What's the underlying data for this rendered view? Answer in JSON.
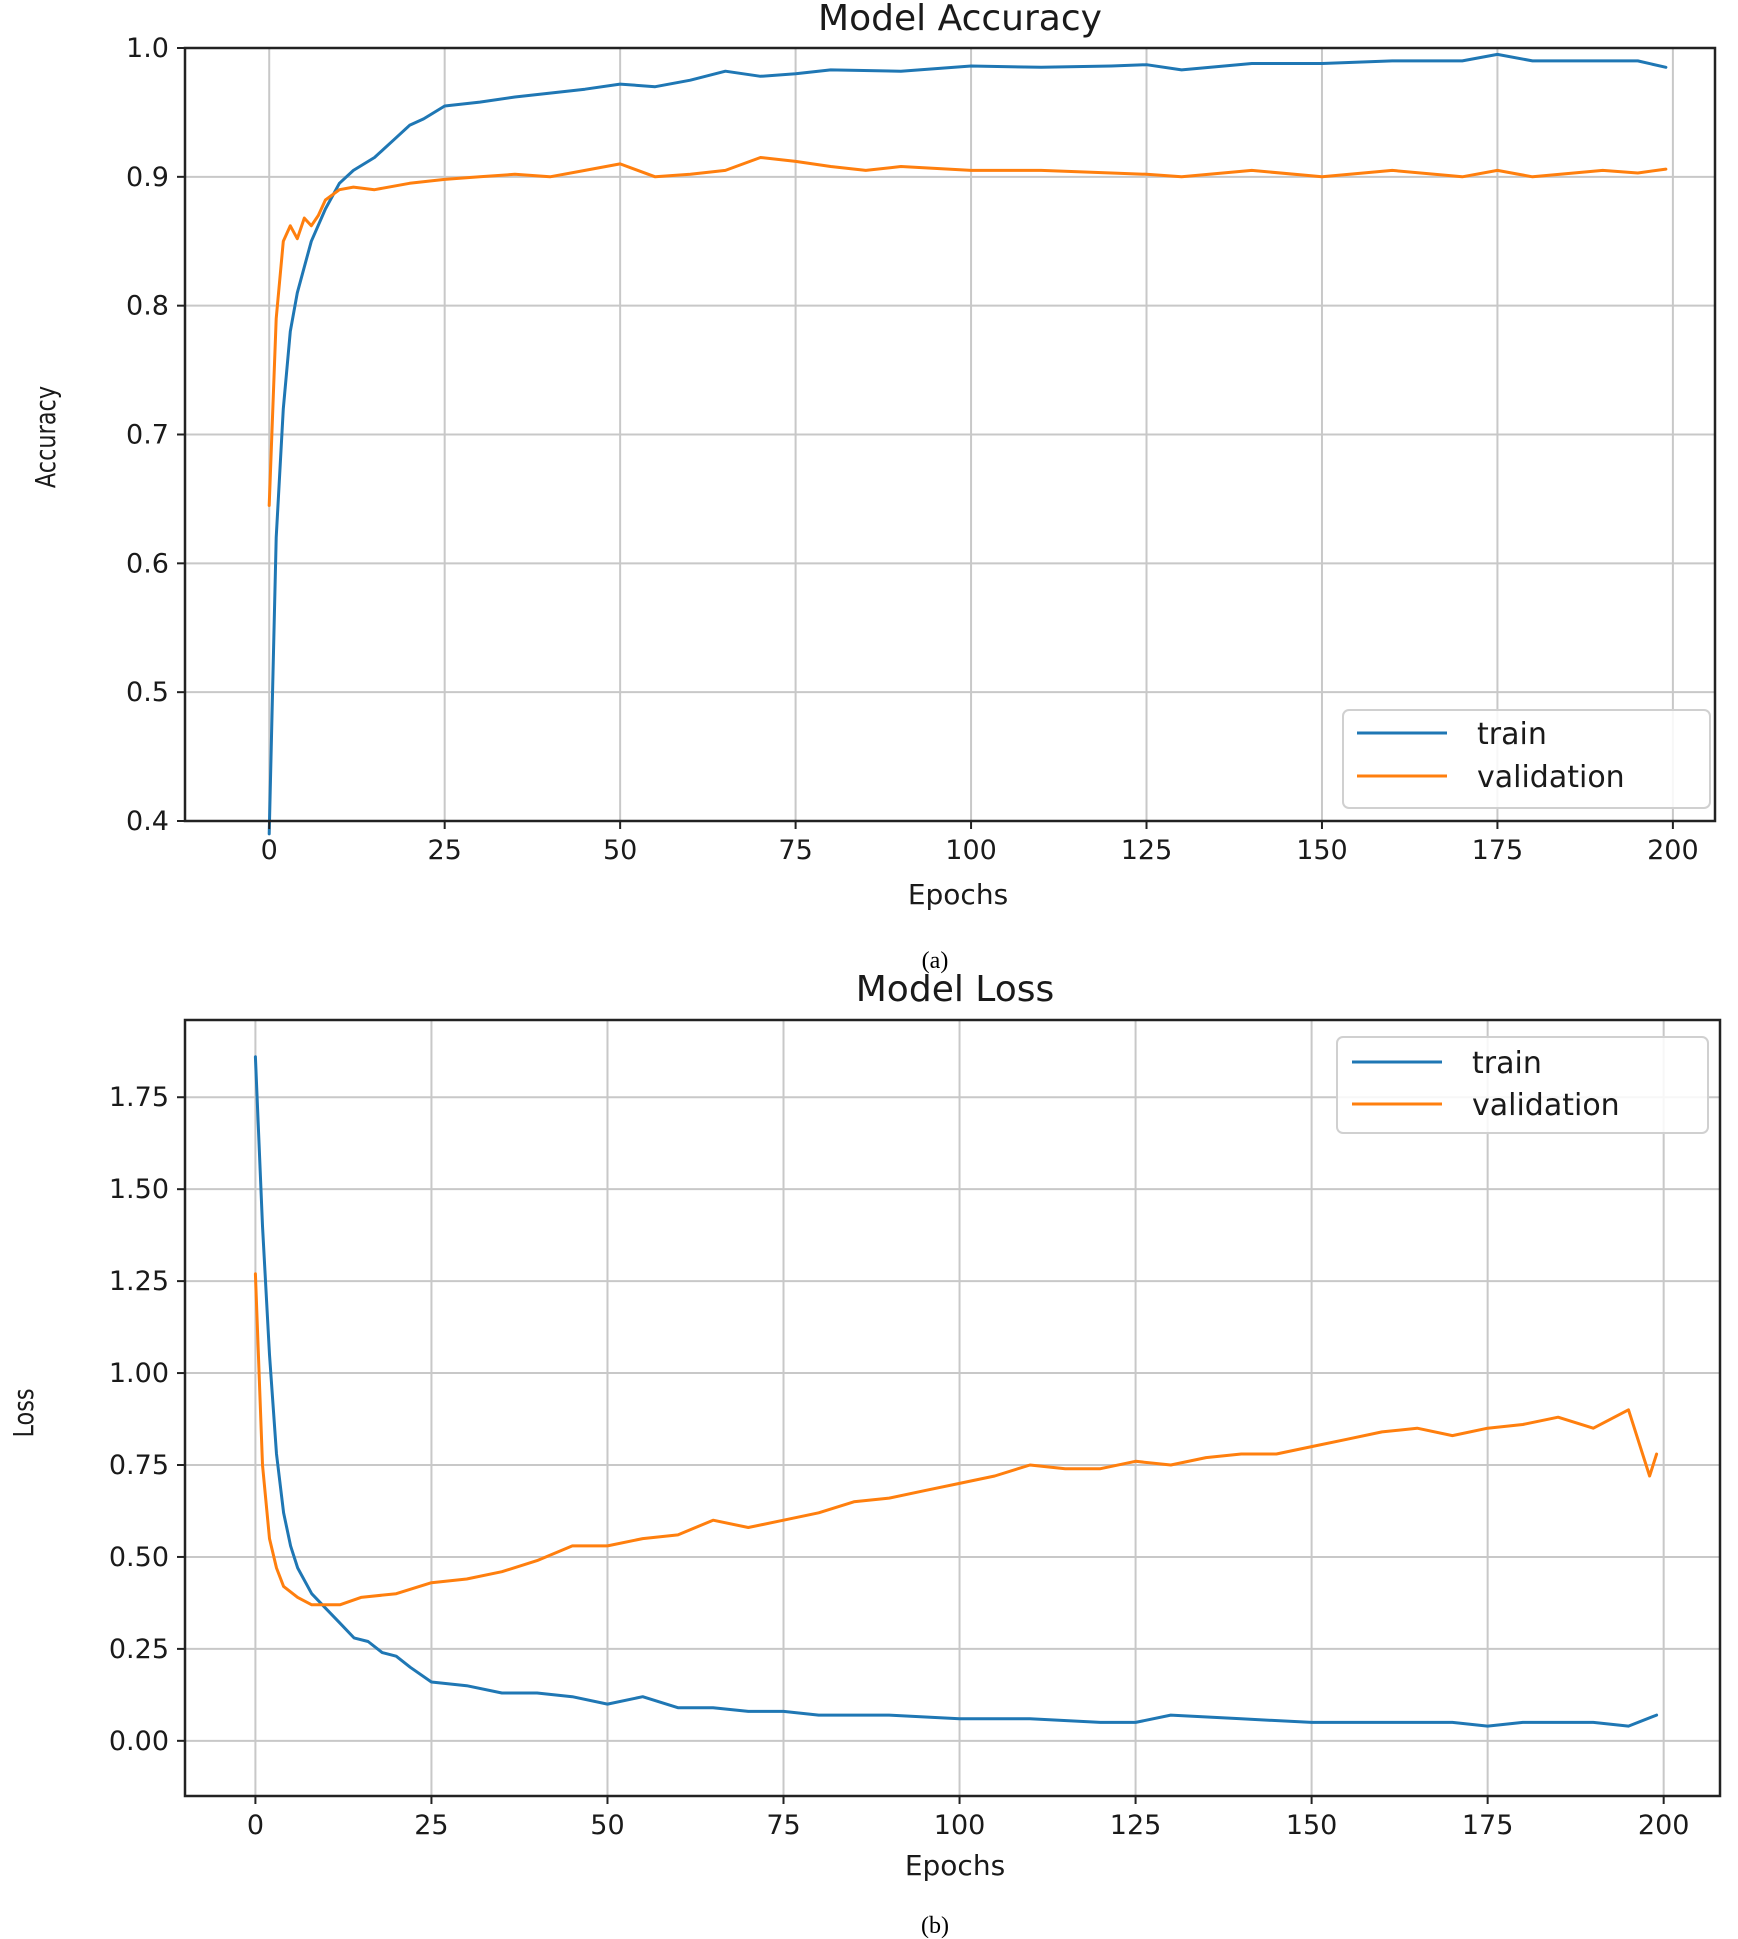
{
  "charts": [
    {
      "id": "accuracy",
      "title": "Model Accuracy",
      "xlabel": "Epochs",
      "ylabel": "Accuracy",
      "caption": "(a)",
      "legend": {
        "position": "lower-right",
        "items": [
          "train",
          "validation"
        ]
      }
    },
    {
      "id": "loss",
      "title": "Model Loss",
      "xlabel": "Epochs",
      "ylabel": "Loss",
      "caption": "(b)",
      "legend": {
        "position": "upper-right",
        "items": [
          "train",
          "validation"
        ]
      }
    }
  ],
  "chart_data": [
    {
      "type": "line",
      "title": "Model Accuracy",
      "xlabel": "Epochs",
      "ylabel": "Accuracy",
      "xlim": [
        -12,
        206
      ],
      "ylim": [
        0.4,
        1.0
      ],
      "xticks": [
        "0",
        "25",
        "50",
        "75",
        "100",
        "125",
        "150",
        "175",
        "200"
      ],
      "yticks": [
        "0.4",
        "0.5",
        "0.6",
        "0.7",
        "0.8",
        "0.9",
        "1.0"
      ],
      "grid": true,
      "legend": "lower-right",
      "colors": {
        "train": "#1f77b4",
        "validation": "#ff7f0e"
      },
      "series": [
        {
          "name": "train",
          "x": [
            0,
            1,
            2,
            3,
            4,
            5,
            6,
            8,
            10,
            12,
            15,
            18,
            20,
            22,
            25,
            30,
            35,
            40,
            45,
            50,
            55,
            60,
            65,
            70,
            75,
            80,
            90,
            100,
            110,
            120,
            125,
            130,
            140,
            150,
            160,
            170,
            175,
            180,
            190,
            195,
            199
          ],
          "y": [
            0.39,
            0.62,
            0.72,
            0.78,
            0.81,
            0.83,
            0.85,
            0.875,
            0.895,
            0.905,
            0.915,
            0.93,
            0.94,
            0.945,
            0.955,
            0.958,
            0.962,
            0.965,
            0.968,
            0.972,
            0.97,
            0.975,
            0.982,
            0.978,
            0.98,
            0.983,
            0.982,
            0.986,
            0.985,
            0.986,
            0.987,
            0.983,
            0.988,
            0.988,
            0.99,
            0.99,
            0.995,
            0.99,
            0.99,
            0.99,
            0.985
          ]
        },
        {
          "name": "validation",
          "x": [
            0,
            1,
            2,
            3,
            4,
            5,
            6,
            7,
            8,
            10,
            12,
            15,
            20,
            25,
            30,
            35,
            40,
            45,
            50,
            55,
            60,
            65,
            70,
            75,
            80,
            85,
            90,
            100,
            110,
            120,
            125,
            130,
            140,
            150,
            160,
            170,
            175,
            180,
            190,
            195,
            199
          ],
          "y": [
            0.645,
            0.79,
            0.85,
            0.862,
            0.852,
            0.868,
            0.862,
            0.87,
            0.882,
            0.89,
            0.892,
            0.89,
            0.895,
            0.898,
            0.9,
            0.902,
            0.9,
            0.905,
            0.91,
            0.9,
            0.902,
            0.905,
            0.915,
            0.912,
            0.908,
            0.905,
            0.908,
            0.905,
            0.905,
            0.903,
            0.902,
            0.9,
            0.905,
            0.9,
            0.905,
            0.9,
            0.905,
            0.9,
            0.905,
            0.903,
            0.906
          ]
        }
      ]
    },
    {
      "type": "line",
      "title": "Model Loss",
      "xlabel": "Epochs",
      "ylabel": "Loss",
      "xlim": [
        -10,
        208
      ],
      "ylim": [
        -0.15,
        1.96
      ],
      "xticks": [
        "0",
        "25",
        "50",
        "75",
        "100",
        "125",
        "150",
        "175",
        "200"
      ],
      "yticks": [
        "0.00",
        "0.25",
        "0.50",
        "0.75",
        "1.00",
        "1.25",
        "1.50",
        "1.75"
      ],
      "grid": true,
      "legend": "upper-right",
      "colors": {
        "train": "#1f77b4",
        "validation": "#ff7f0e"
      },
      "series": [
        {
          "name": "train",
          "x": [
            0,
            1,
            2,
            3,
            4,
            5,
            6,
            8,
            10,
            12,
            14,
            16,
            18,
            20,
            22,
            25,
            30,
            35,
            40,
            45,
            50,
            55,
            60,
            65,
            70,
            75,
            80,
            90,
            100,
            110,
            120,
            125,
            130,
            140,
            150,
            160,
            170,
            175,
            180,
            190,
            195,
            199
          ],
          "y": [
            1.86,
            1.4,
            1.05,
            0.78,
            0.62,
            0.53,
            0.47,
            0.4,
            0.36,
            0.32,
            0.28,
            0.27,
            0.24,
            0.23,
            0.2,
            0.16,
            0.15,
            0.13,
            0.13,
            0.12,
            0.1,
            0.12,
            0.09,
            0.09,
            0.08,
            0.08,
            0.07,
            0.07,
            0.06,
            0.06,
            0.05,
            0.05,
            0.07,
            0.06,
            0.05,
            0.05,
            0.05,
            0.04,
            0.05,
            0.05,
            0.04,
            0.07
          ]
        },
        {
          "name": "validation",
          "x": [
            0,
            1,
            2,
            3,
            4,
            6,
            8,
            10,
            12,
            15,
            20,
            25,
            30,
            35,
            40,
            45,
            50,
            55,
            60,
            65,
            70,
            75,
            80,
            85,
            90,
            95,
            100,
            105,
            110,
            115,
            120,
            125,
            130,
            135,
            140,
            145,
            150,
            155,
            160,
            165,
            170,
            175,
            180,
            185,
            190,
            195,
            198,
            199
          ],
          "y": [
            1.27,
            0.75,
            0.55,
            0.47,
            0.42,
            0.39,
            0.37,
            0.37,
            0.37,
            0.39,
            0.4,
            0.43,
            0.44,
            0.46,
            0.49,
            0.53,
            0.53,
            0.55,
            0.56,
            0.6,
            0.58,
            0.6,
            0.62,
            0.65,
            0.66,
            0.68,
            0.7,
            0.72,
            0.75,
            0.74,
            0.74,
            0.76,
            0.75,
            0.77,
            0.78,
            0.78,
            0.8,
            0.82,
            0.84,
            0.85,
            0.83,
            0.85,
            0.86,
            0.88,
            0.85,
            0.9,
            0.72,
            0.78
          ]
        }
      ]
    }
  ]
}
